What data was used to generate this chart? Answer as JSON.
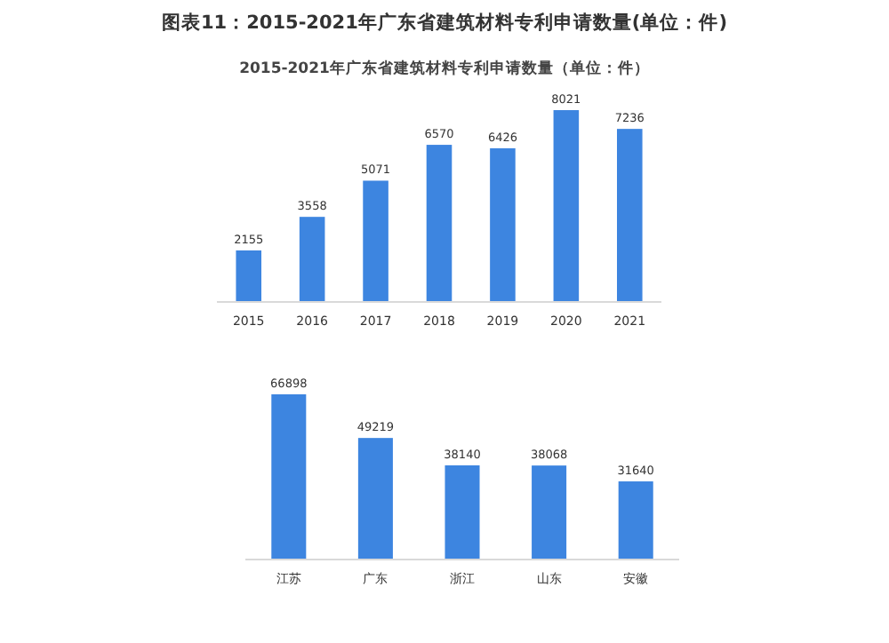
{
  "chart_data": [
    {
      "type": "bar",
      "title": "图表11：2015-2021年广东省建筑材料专利申请数量(单位：件)",
      "subtitle": "2015-2021年广东省建筑材料专利申请数量（单位：件）",
      "categories": [
        "2015",
        "2016",
        "2017",
        "2018",
        "2019",
        "2020",
        "2021"
      ],
      "values": [
        2155,
        3558,
        5071,
        6570,
        6426,
        8021,
        7236
      ],
      "color": "#3d85e0",
      "data_labels": true,
      "tick_labels": "x"
    },
    {
      "type": "bar",
      "categories": [
        "江苏",
        "广东",
        "浙江",
        "山东",
        "安徽"
      ],
      "values": [
        66898,
        49219,
        38140,
        38068,
        31640
      ],
      "color": "#3d85e0",
      "data_labels": true,
      "tick_labels": "x"
    }
  ]
}
